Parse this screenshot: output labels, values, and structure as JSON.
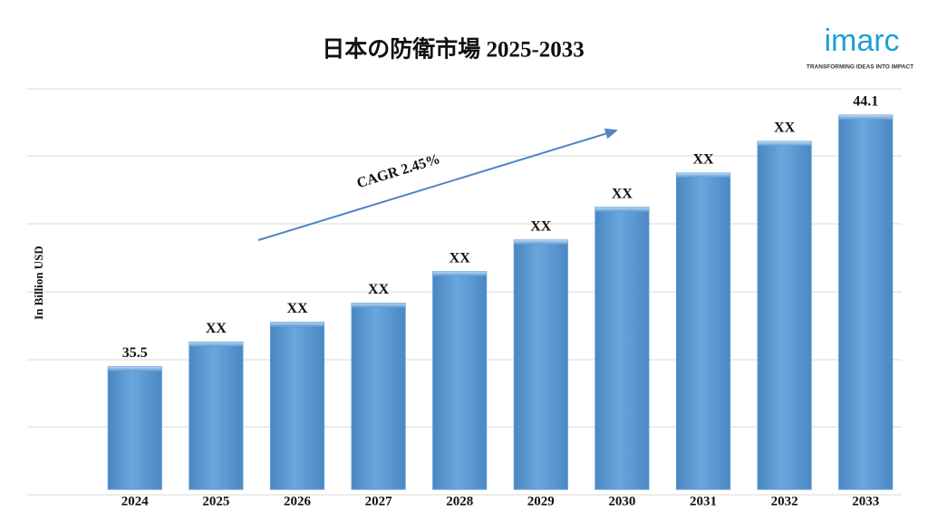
{
  "brand": {
    "name": "imarc",
    "tagline": "TRANSFORMING IDEAS INTO IMPACT"
  },
  "chart_data": {
    "type": "bar",
    "title": "日本の防衛市場 2025-2033",
    "y_label": "In Billion USD",
    "annotation": "CAGR 2.45%",
    "categories": [
      "2024",
      "2025",
      "2026",
      "2027",
      "2028",
      "2029",
      "2030",
      "2031",
      "2032",
      "2033"
    ],
    "values": [
      35.5,
      36.34,
      37.02,
      37.67,
      38.75,
      39.83,
      40.95,
      42.12,
      43.2,
      44.1
    ],
    "value_labels": [
      "35.5",
      "XX",
      "XX",
      "XX",
      "XX",
      "XX",
      "XX",
      "XX",
      "XX",
      "44.1"
    ],
    "color": "#5b9bd5",
    "ylim": [
      31.3,
      45
    ],
    "grid": true
  }
}
